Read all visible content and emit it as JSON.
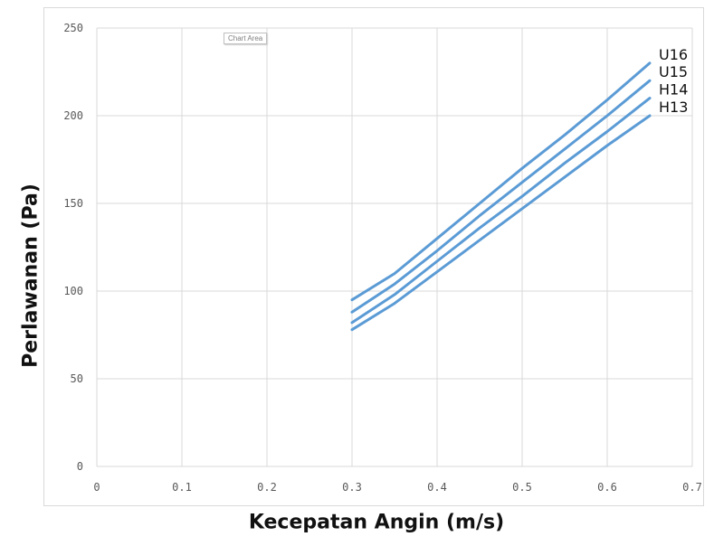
{
  "chart_data": {
    "type": "line",
    "title": "",
    "xlabel": "Kecepatan Angin (m/s)",
    "ylabel": "Perlawanan (Pa)",
    "xlim": [
      0,
      0.7
    ],
    "ylim": [
      0,
      250
    ],
    "x_ticks": [
      "0",
      "0.1",
      "0.2",
      "0.3",
      "0.4",
      "0.5",
      "0.6",
      "0.7"
    ],
    "y_ticks": [
      "0",
      "50",
      "100",
      "150",
      "200",
      "250"
    ],
    "grid": true,
    "legend": "inline labels at line ends (right)",
    "line_color": "#5b9bd5",
    "chart_area_tag": "Chart Area",
    "series": [
      {
        "name": "U16",
        "x": [
          0.3,
          0.35,
          0.4,
          0.45,
          0.5,
          0.55,
          0.6,
          0.65
        ],
        "y": [
          95,
          110,
          130,
          150,
          170,
          189,
          209,
          230
        ]
      },
      {
        "name": "U15",
        "x": [
          0.3,
          0.35,
          0.4,
          0.45,
          0.5,
          0.55,
          0.6,
          0.65
        ],
        "y": [
          88,
          104,
          123,
          143,
          162,
          181,
          200,
          220
        ]
      },
      {
        "name": "H14",
        "x": [
          0.3,
          0.35,
          0.4,
          0.45,
          0.5,
          0.55,
          0.6,
          0.65
        ],
        "y": [
          82,
          98,
          117,
          136,
          154,
          173,
          191,
          210
        ]
      },
      {
        "name": "H13",
        "x": [
          0.3,
          0.35,
          0.4,
          0.45,
          0.5,
          0.55,
          0.6,
          0.65
        ],
        "y": [
          78,
          93,
          111,
          129,
          147,
          165,
          183,
          200
        ]
      }
    ]
  }
}
